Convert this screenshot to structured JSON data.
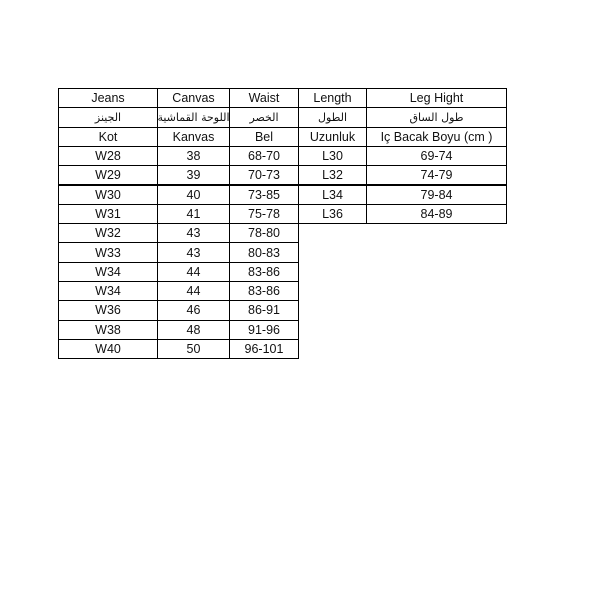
{
  "headers": [
    [
      "Jeans",
      "Canvas",
      "Waist",
      "Length",
      "Leg Hight"
    ],
    [
      "الجينز",
      "اللوحة القماشية",
      "الخصر",
      "الطول",
      "طول الساق"
    ],
    [
      "Kot",
      "Kanvas",
      "Bel",
      "Uzunluk",
      "Iç Bacak Boyu (cm )"
    ]
  ],
  "rows": [
    [
      "W28",
      "38",
      "68-70",
      "L30",
      "69-74"
    ],
    [
      "W29",
      "39",
      "70-73",
      "L32",
      "74-79"
    ],
    [
      "W30",
      "40",
      "73-85",
      "L34",
      "79-84"
    ],
    [
      "W31",
      "41",
      "75-78",
      "L36",
      "84-89"
    ],
    [
      "W32",
      "43",
      "78-80"
    ],
    [
      "W33",
      "43",
      "80-83"
    ],
    [
      "W34",
      "44",
      "83-86"
    ],
    [
      "W34",
      "44",
      "83-86"
    ],
    [
      "W36",
      "46",
      "86-91"
    ],
    [
      "W38",
      "48",
      "91-96"
    ],
    [
      "W40",
      "50",
      "96-101"
    ]
  ]
}
